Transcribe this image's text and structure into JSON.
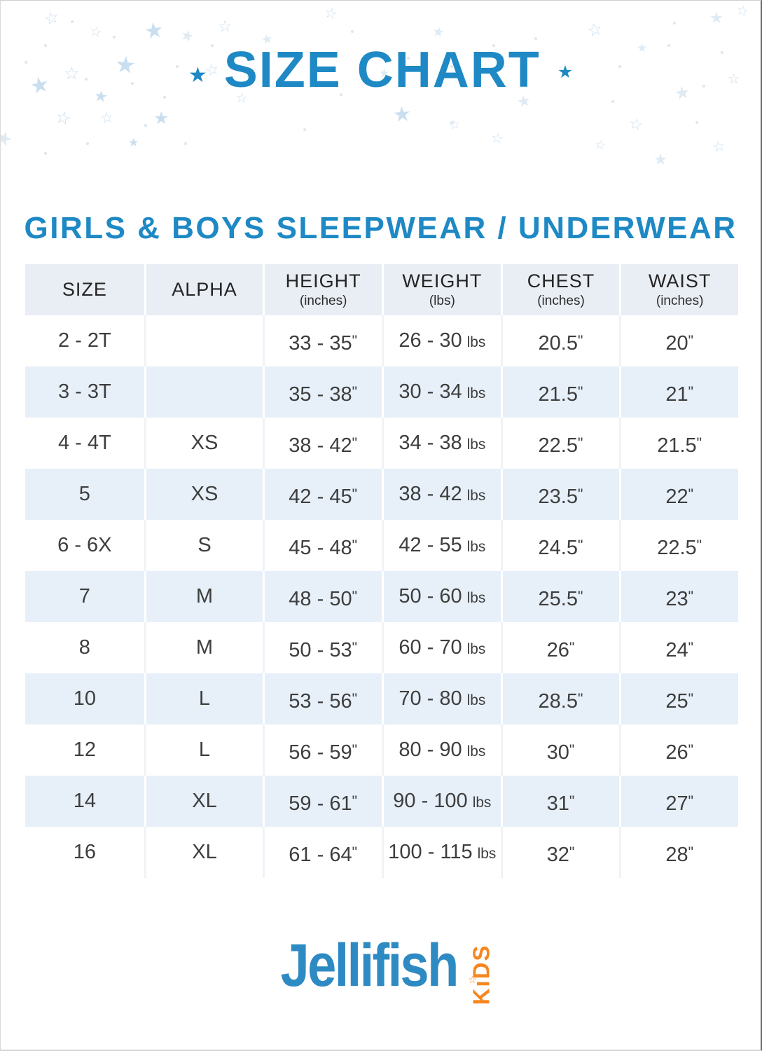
{
  "header": {
    "title": "SIZE CHART",
    "subtitle": "GIRLS & BOYS SLEEPWEAR / UNDERWEAR"
  },
  "colors": {
    "accent_blue": "#1e89c4",
    "logo_blue": "#2e8ac2",
    "logo_orange": "#f6861f",
    "table_header_bg": "#e9eef4",
    "table_alt_row_bg": "#e7f0f9",
    "table_text": "#3e3e3e",
    "star_filled": "#c9dff0",
    "star_pale": "#e0eaf3",
    "star_outline": "#ccdfee"
  },
  "table": {
    "columns": [
      {
        "label": "SIZE",
        "unit": ""
      },
      {
        "label": "ALPHA",
        "unit": ""
      },
      {
        "label": "HEIGHT",
        "unit": "(inches)"
      },
      {
        "label": "WEIGHT",
        "unit": "(lbs)"
      },
      {
        "label": "CHEST",
        "unit": "(inches)"
      },
      {
        "label": "WAIST",
        "unit": "(inches)"
      }
    ],
    "rows": [
      [
        {
          "t": "2 - 2T"
        },
        {
          "t": ""
        },
        {
          "t": "33 - 35",
          "u": "in"
        },
        {
          "t": "26 - 30",
          "u": "lbs"
        },
        {
          "t": "20.5",
          "u": "in"
        },
        {
          "t": "20",
          "u": "in"
        }
      ],
      [
        {
          "t": "3 - 3T"
        },
        {
          "t": ""
        },
        {
          "t": "35 - 38",
          "u": "in"
        },
        {
          "t": "30 - 34",
          "u": "lbs"
        },
        {
          "t": "21.5",
          "u": "in"
        },
        {
          "t": "21",
          "u": "in"
        }
      ],
      [
        {
          "t": "4 - 4T"
        },
        {
          "t": "XS"
        },
        {
          "t": "38 - 42",
          "u": "in"
        },
        {
          "t": "34 - 38",
          "u": "lbs"
        },
        {
          "t": "22.5",
          "u": "in"
        },
        {
          "t": "21.5",
          "u": "in"
        }
      ],
      [
        {
          "t": "5"
        },
        {
          "t": "XS"
        },
        {
          "t": "42 - 45",
          "u": "in"
        },
        {
          "t": "38 - 42",
          "u": "lbs"
        },
        {
          "t": "23.5",
          "u": "in"
        },
        {
          "t": "22",
          "u": "in"
        }
      ],
      [
        {
          "t": "6 - 6X"
        },
        {
          "t": "S"
        },
        {
          "t": "45 - 48",
          "u": "in"
        },
        {
          "t": "42 - 55",
          "u": "lbs"
        },
        {
          "t": "24.5",
          "u": "in"
        },
        {
          "t": "22.5",
          "u": "in"
        }
      ],
      [
        {
          "t": "7"
        },
        {
          "t": "M"
        },
        {
          "t": "48 - 50",
          "u": "in"
        },
        {
          "t": "50 - 60",
          "u": "lbs"
        },
        {
          "t": "25.5",
          "u": "in"
        },
        {
          "t": "23",
          "u": "in"
        }
      ],
      [
        {
          "t": "8"
        },
        {
          "t": "M"
        },
        {
          "t": "50 - 53",
          "u": "in"
        },
        {
          "t": "60 - 70",
          "u": "lbs"
        },
        {
          "t": "26",
          "u": "in"
        },
        {
          "t": "24",
          "u": "in"
        }
      ],
      [
        {
          "t": "10"
        },
        {
          "t": "L"
        },
        {
          "t": "53 - 56",
          "u": "in"
        },
        {
          "t": "70 - 80",
          "u": "lbs"
        },
        {
          "t": "28.5",
          "u": "in"
        },
        {
          "t": "25",
          "u": "in"
        }
      ],
      [
        {
          "t": "12"
        },
        {
          "t": "L"
        },
        {
          "t": "56 - 59",
          "u": "in"
        },
        {
          "t": "80 - 90",
          "u": "lbs"
        },
        {
          "t": "30",
          "u": "in"
        },
        {
          "t": "26",
          "u": "in"
        }
      ],
      [
        {
          "t": "14"
        },
        {
          "t": "XL"
        },
        {
          "t": "59 - 61",
          "u": "in"
        },
        {
          "t": "90 - 100",
          "u": "lbs"
        },
        {
          "t": "31",
          "u": "in"
        },
        {
          "t": "27",
          "u": "in"
        }
      ],
      [
        {
          "t": "16"
        },
        {
          "t": "XL"
        },
        {
          "t": "61 - 64",
          "u": "in"
        },
        {
          "t": "100 - 115",
          "u": "lbs"
        },
        {
          "t": "32",
          "u": "in"
        },
        {
          "t": "28",
          "u": "in"
        }
      ]
    ]
  },
  "footer": {
    "brand": "Jellifish",
    "brand_suffix": "KiDS"
  }
}
